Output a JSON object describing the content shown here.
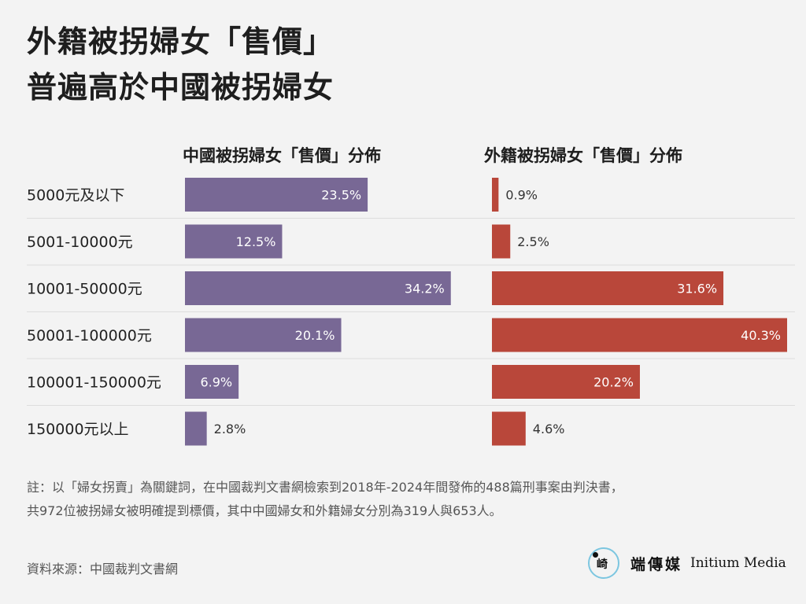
{
  "title": {
    "line1": "外籍被拐婦女「售價」",
    "line2": "普遍高於中國被拐婦女"
  },
  "chart_data": [
    {
      "type": "bar",
      "orientation": "horizontal",
      "title": "中國被拐婦女「售價」分佈",
      "categories": [
        "5000元及以下",
        "5001-10000元",
        "10001-50000元",
        "50001-100000元",
        "100001-150000元",
        "150000元以上"
      ],
      "values": [
        23.5,
        12.5,
        34.2,
        20.1,
        6.9,
        2.8
      ],
      "labels": [
        "23.5%",
        "12.5%",
        "34.2%",
        "20.1%",
        "6.9%",
        "2.8%"
      ],
      "color": "#786895",
      "xlim": [
        0,
        40.3
      ]
    },
    {
      "type": "bar",
      "orientation": "horizontal",
      "title": "外籍被拐婦女「售價」分佈",
      "categories": [
        "5000元及以下",
        "5001-10000元",
        "10001-50000元",
        "50001-100000元",
        "100001-150000元",
        "150000元以上"
      ],
      "values": [
        0.9,
        2.5,
        31.6,
        40.3,
        20.2,
        4.6
      ],
      "labels": [
        "0.9%",
        "2.5%",
        "31.6%",
        "40.3%",
        "20.2%",
        "4.6%"
      ],
      "color": "#b9473a",
      "xlim": [
        0,
        40.3
      ]
    }
  ],
  "note": "註：以「婦女拐賣」為關鍵詞，在中國裁判文書網檢索到2018年-2024年間發佈的488篇刑事案由判決書，共972位被拐婦女被明確提到標價，其中中國婦女和外籍婦女分別為319人與653人。",
  "source": "資料來源：中國裁判文書網",
  "logo": {
    "mark": "崎",
    "name_cn": "端傳媒",
    "name_en": "Initium Media"
  },
  "colors": {
    "background": "#f3f3f3",
    "china_bar": "#786895",
    "foreign_bar": "#b9473a",
    "divider": "#dddddd"
  }
}
